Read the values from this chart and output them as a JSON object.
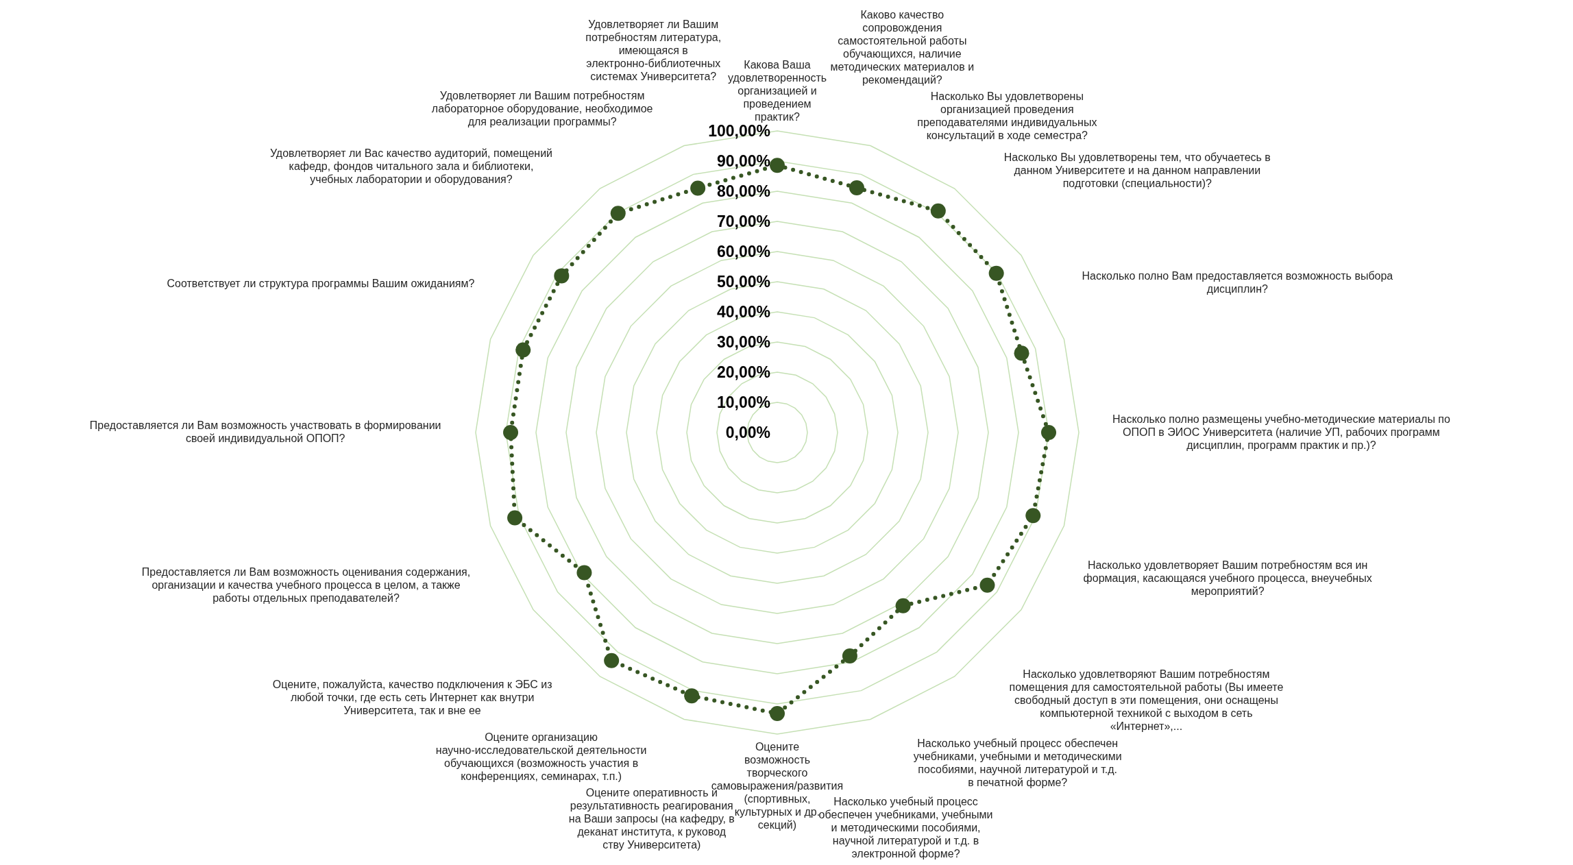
{
  "chart_data": {
    "type": "radar",
    "categories": [
      "Какова Ваша удовлетворенность организацией и проведением практик?",
      "Каково качество сопровождения самостоятельной работы обучающихся, наличие методических материалов и рекомендаций?",
      "Насколько Вы удовлетворены организацией проведения преподавателями индивидуальных консультаций в ходе семестра?",
      "Насколько Вы удовлетворены тем, что обучаетесь в данном Университете и на данном направлении подготовки (специальности)?",
      "Насколько полно Вам предоставляется возможность выбора дисциплин?",
      "Насколько полно размещены учебно-методические материалы по ОПОП в ЭИОС Университета (наличие УП, рабочих программ дисциплин, программ практик и пр.)?",
      "Насколько удовлетворяет Вашим потребностям вся ин формация, касающаяся учебного процесса, внеучебных мероприятий?",
      "Насколько удовлетворяют Вашим потребностям помещения для самостоятельной работы (Вы имеете свободный доступ в эти помещения, они оснащены компьютерной техникой с выходом в сеть «Интернет»,...",
      "Насколько учебный процесс обеспечен учебниками, учебными и методическими пособиями, научной литературой и т.д. в печатной форме?",
      "Насколько учебный процесс обеспечен учебниками, учебными и методическими пособиями, научной литературой и т.д. в электронной форме?",
      "Оцените возможность творческого самовыражения/развития (спортивных, культурных и др. секций)",
      "Оцените оперативность и результативность реагирования на Ваши запросы (на кафедру, в деканат института, к руковод ству Университета)",
      "Оцените организацию научно-исследовательской деятельности обучающихся (возможность участия в конференциях, семинарах, т.п.)",
      "Оцените, пожалуйста, качество подключения к ЭБС из любой точки, где есть сеть Интернет как внутри Университета, так и вне ее",
      "Предоставляется ли Вам возможность оценивания содержания, организации и качества учебного процесса в целом, а также работы отдельных преподавателей?",
      "Предоставляется ли Вам возможность участвовать в формировании своей индивидуальной ОПОП?",
      "Соответствует ли структура программы Вашим ожиданиям?",
      "Удовлетворяет ли Вас качество аудиторий, помещений кафедр, фондов читального зала и библиотеки, учебных лаборатории и оборудования?",
      "Удовлетворяет ли Вашим потребностям лабораторное оборудование, необходимое для реализации программы?",
      "Удовлетворяет ли Вашим потребностям литература, имеющаяся в электронно-библиотечных системах Университета?"
    ],
    "series": [
      {
        "color": "#375623",
        "values": [
          88.6,
          85.3,
          90.8,
          89.8,
          85.2,
          90,
          89.2,
          86.1,
          71,
          77.9,
          93.2,
          91.8,
          93.5,
          79.1,
          91.5,
          88.4,
          88.6,
          88.4,
          89.8,
          85.2
        ]
      }
    ],
    "ylim": [
      0,
      100
    ],
    "yticks": [
      {
        "value": 0,
        "label": "0,00%"
      },
      {
        "value": 10,
        "label": "10,00%"
      },
      {
        "value": 20,
        "label": "20,00%"
      },
      {
        "value": 30,
        "label": "30,00%"
      },
      {
        "value": 40,
        "label": "40,00%"
      },
      {
        "value": 50,
        "label": "50,00%"
      },
      {
        "value": 60,
        "label": "60,00%"
      },
      {
        "value": 70,
        "label": "70,00%"
      },
      {
        "value": 80,
        "label": "80,00%"
      },
      {
        "value": 90,
        "label": "90,00%"
      },
      {
        "value": 100,
        "label": "100,00%"
      }
    ],
    "grid": true,
    "marker": "circle",
    "line_style": "dotted"
  }
}
